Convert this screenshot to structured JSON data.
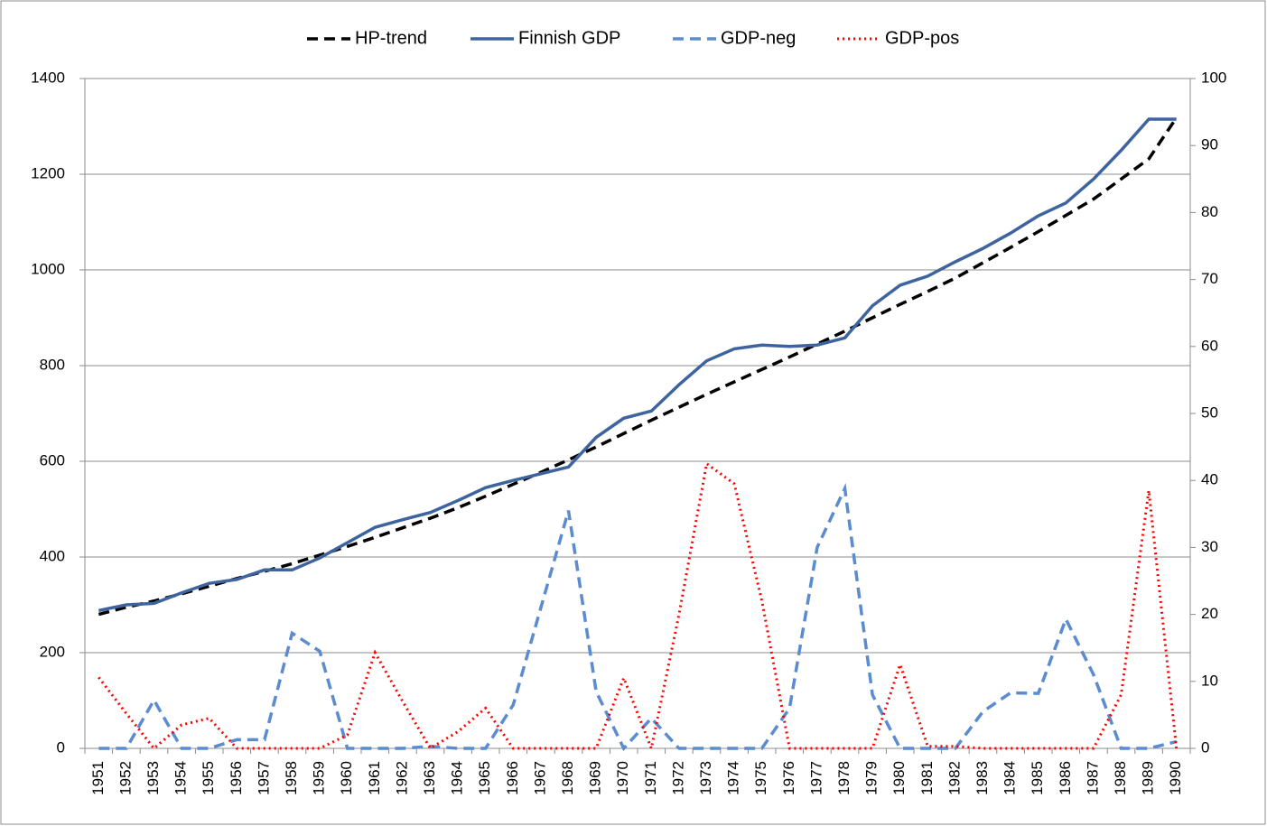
{
  "chart_data": {
    "type": "line",
    "categories": [
      "1951",
      "1952",
      "1953",
      "1954",
      "1955",
      "1956",
      "1957",
      "1958",
      "1959",
      "1960",
      "1961",
      "1962",
      "1963",
      "1964",
      "1965",
      "1966",
      "1967",
      "1968",
      "1969",
      "1970",
      "1971",
      "1972",
      "1973",
      "1974",
      "1975",
      "1976",
      "1977",
      "1978",
      "1979",
      "1980",
      "1981",
      "1982",
      "1983",
      "1984",
      "1985",
      "1986",
      "1987",
      "1988",
      "1989",
      "1990"
    ],
    "series": [
      {
        "name": "HP-trend",
        "color": "#000000",
        "style": "dashed",
        "values": [
          280,
          295,
          308,
          323,
          339,
          355,
          370,
          386,
          404,
          422,
          441,
          461,
          481,
          503,
          527,
          552,
          577,
          603,
          630,
          658,
          686,
          713,
          740,
          766,
          792,
          818,
          845,
          872,
          900,
          928,
          955,
          983,
          1015,
          1047,
          1080,
          1114,
          1148,
          1190,
          1232,
          1318
        ]
      },
      {
        "name": "Finnish GDP",
        "color": "#3e64a0",
        "style": "solid",
        "values": [
          288,
          300,
          303,
          325,
          345,
          353,
          373,
          373,
          398,
          430,
          462,
          478,
          493,
          518,
          545,
          560,
          574,
          588,
          650,
          690,
          705,
          760,
          810,
          835,
          843,
          840,
          843,
          858,
          925,
          968,
          987,
          1017,
          1045,
          1077,
          1113,
          1140,
          1190,
          1250,
          1315,
          1315
        ]
      },
      {
        "name": "GDP-neg",
        "color": "#5b8ccf",
        "style": "dashed",
        "axis": "y2",
        "values": [
          0,
          0,
          7.2,
          0,
          0,
          1.3,
          1.3,
          17.2,
          14.5,
          0,
          0,
          0,
          0.3,
          0,
          0,
          6.5,
          21,
          35.5,
          8.5,
          0,
          4.5,
          0,
          0,
          0,
          0,
          6,
          30,
          38.8,
          8,
          0,
          0,
          0,
          5.5,
          8.3,
          8.2,
          19.3,
          11,
          0,
          0,
          1
        ]
      },
      {
        "name": "GDP-pos",
        "color": "#ff0000",
        "style": "dotted",
        "axis": "y2",
        "values": [
          10.6,
          5.2,
          0,
          3.5,
          4.5,
          0,
          0,
          0,
          0,
          2,
          14.3,
          7,
          0,
          2.5,
          6,
          0,
          0,
          0,
          0,
          10.5,
          0,
          20,
          42.5,
          39.5,
          22,
          0,
          0,
          0,
          0,
          12.5,
          0.3,
          0.3,
          0,
          0,
          0,
          0,
          0,
          8,
          38.5,
          0
        ]
      }
    ],
    "ylim": [
      0,
      1400
    ],
    "yticks": [
      0,
      200,
      400,
      600,
      800,
      1000,
      1200,
      1400
    ],
    "y2lim": [
      0,
      100
    ],
    "y2ticks": [
      0,
      10,
      20,
      30,
      40,
      50,
      60,
      70,
      80,
      90,
      100
    ],
    "grid": true,
    "legend": "top"
  }
}
